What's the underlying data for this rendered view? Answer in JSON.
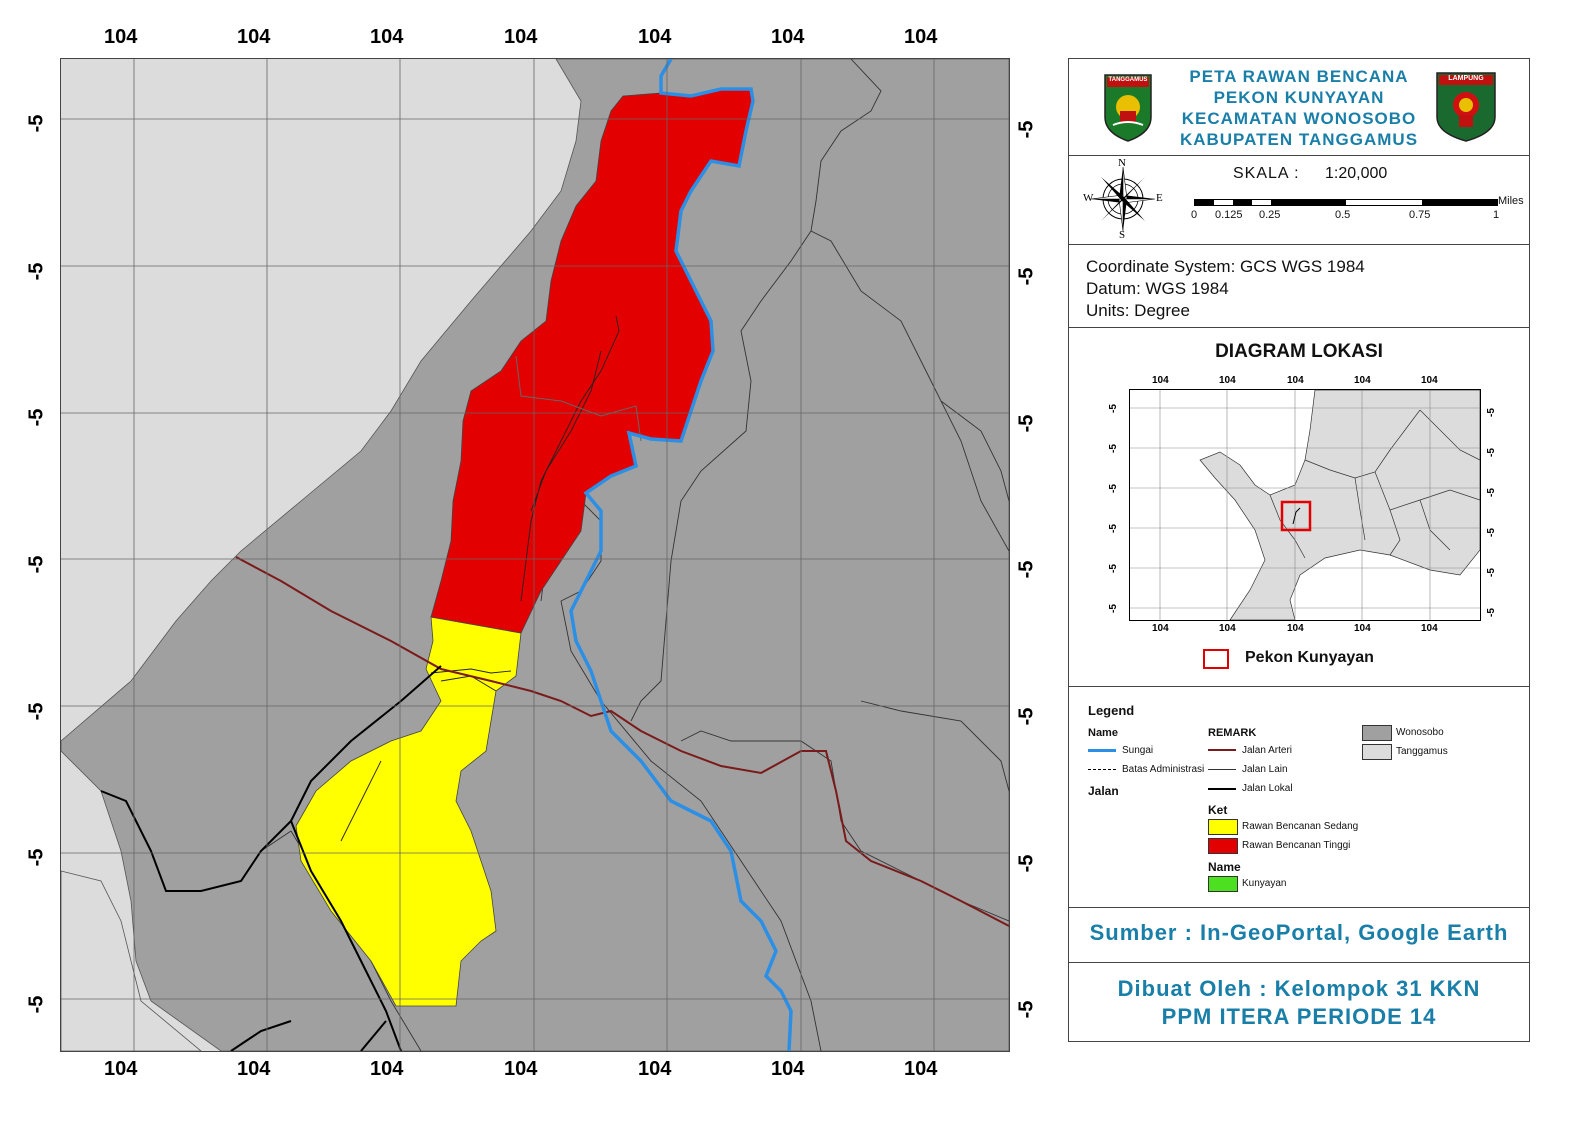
{
  "map": {
    "top_ticks": [
      "104",
      "104",
      "104",
      "104",
      "104",
      "104",
      "104"
    ],
    "bottom_ticks": [
      "104",
      "104",
      "104",
      "104",
      "104",
      "104",
      "104"
    ],
    "left_ticks": [
      "-5",
      "-5",
      "-5",
      "-5",
      "-5",
      "-5",
      "-5"
    ],
    "right_ticks": [
      "-5",
      "-5",
      "-5",
      "-5",
      "-5",
      "-5",
      "-5"
    ],
    "colors": {
      "wonosobo": "#a0a0a0",
      "tanggamus": "#dcdcdc",
      "rawan_tinggi": "#e30000",
      "rawan_sedang": "#ffff00",
      "sungai": "#2b8fe6",
      "jalan_arteri": "#7a1a1a",
      "jalan_lokal": "#000000"
    }
  },
  "title": {
    "line1": "PETA RAWAN BENCANA",
    "line2": "PEKON KUNYAYAN",
    "line3": "KECAMATAN WONOSOBO",
    "line4": "KABUPATEN TANGGAMUS",
    "logo_left_text": "TANGGAMUS",
    "logo_right_text": "LAMPUNG"
  },
  "scale": {
    "label": "SKALA :",
    "value": "1:20,000",
    "unit": "Miles",
    "ticks": [
      "0",
      "0.125",
      "0.25",
      "0.5",
      "0.75",
      "1"
    ]
  },
  "compass": {
    "n": "N",
    "s": "S",
    "e": "E",
    "w": "W"
  },
  "crs": {
    "line1": "Coordinate System: GCS WGS 1984",
    "line2": "Datum: WGS 1984",
    "line3": "Units: Degree"
  },
  "inset": {
    "title": "DIAGRAM LOKASI",
    "top_ticks": [
      "104",
      "104",
      "104",
      "104",
      "104"
    ],
    "bottom_ticks": [
      "104",
      "104",
      "104",
      "104",
      "104"
    ],
    "left_ticks": [
      "-5",
      "-5",
      "-5",
      "-5",
      "-5",
      "-5"
    ],
    "right_ticks": [
      "-5",
      "-5",
      "-5",
      "-5",
      "-5",
      "-5"
    ],
    "marker_label": "Pekon Kunyayan"
  },
  "legend": {
    "title": "Legend",
    "name_head": "Name",
    "sungai": "Sungai",
    "batas": "Batas Administrasi",
    "jalan_head": "Jalan",
    "remark_head": "REMARK",
    "arteri": "Jalan Arteri",
    "lain": "Jalan Lain",
    "lokal": "Jalan Lokal",
    "ket_head": "Ket",
    "sedang": "Rawan Bencanan Sedang",
    "tinggi": "Rawan Bencanan Tinggi",
    "name_head2": "Name",
    "kunyayan": "Kunyayan",
    "wonosobo": "Wonosobo",
    "tanggamus": "Tanggamus"
  },
  "source": "Sumber : In-GeoPortal, Google Earth",
  "author": {
    "line1": "Dibuat Oleh : Kelompok 31 KKN",
    "line2": "PPM ITERA PERIODE 14"
  }
}
